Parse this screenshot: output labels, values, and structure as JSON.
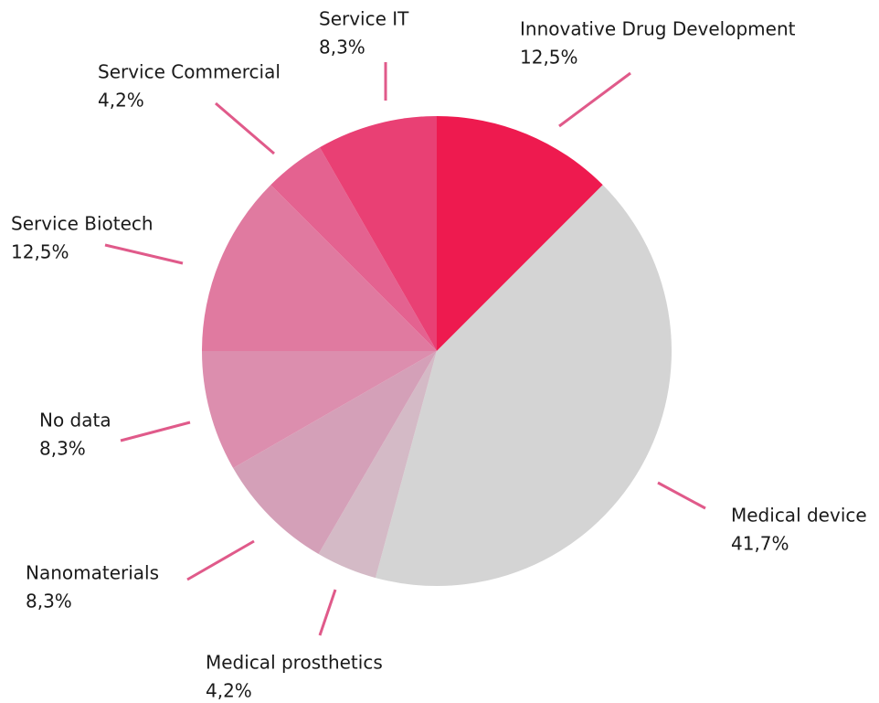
{
  "chart_data": {
    "type": "pie",
    "categories": [
      "Innovative Drug Development",
      "Medical device",
      "Medical prosthetics",
      "Nanomaterials",
      "No data",
      "Service Biotech",
      "Service Commercial",
      "Service IT"
    ],
    "values": [
      12.5,
      41.7,
      4.2,
      8.3,
      8.3,
      12.5,
      4.2,
      8.3
    ],
    "value_labels": [
      "12,5%",
      "41,7%",
      "4,2%",
      "8,3%",
      "8,3%",
      "12,5%",
      "4,2%",
      "8,3%"
    ],
    "colors": [
      "#ee1a4f",
      "#d4d4d4",
      "#d4bac6",
      "#d4a0b8",
      "#dc8eae",
      "#e07aa0",
      "#e46290",
      "#e94074"
    ]
  }
}
